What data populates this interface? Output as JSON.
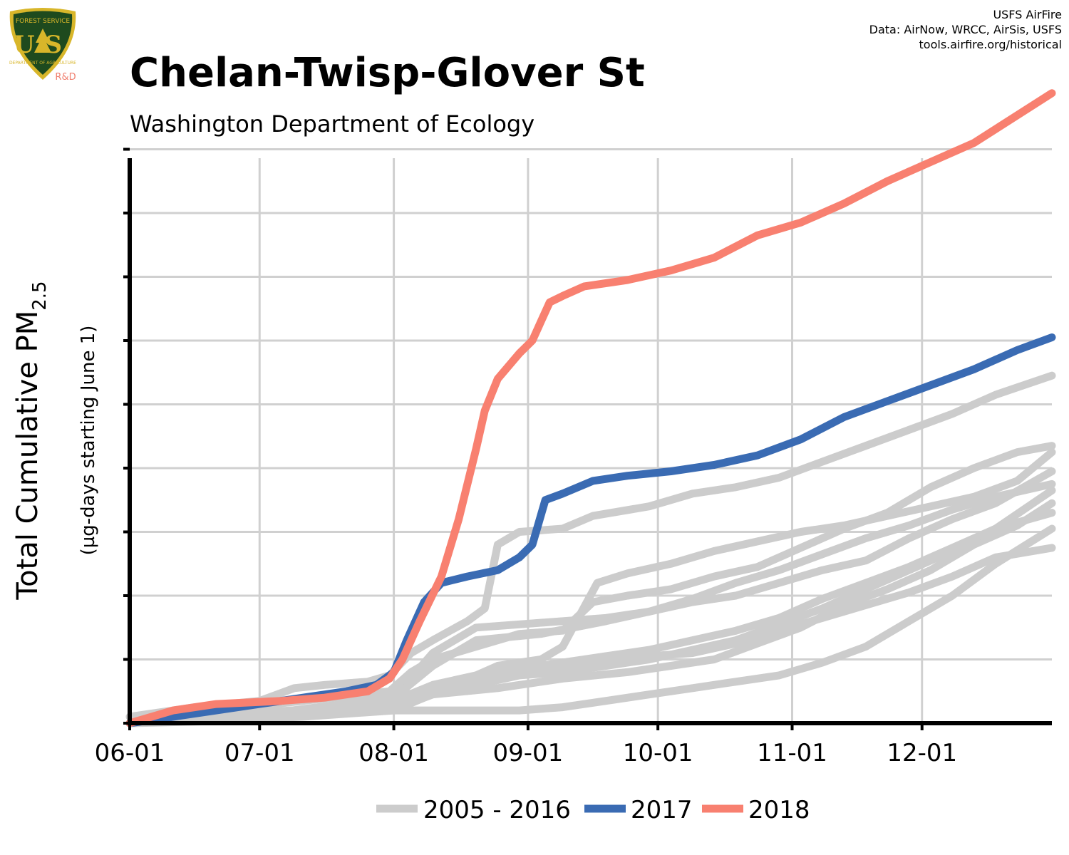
{
  "logo": {
    "top_text": "FOREST SERVICE",
    "initials": "US",
    "bottom_text": "DEPARTMENT OF AGRICULTURE",
    "rd_text": "R&D",
    "colors": {
      "shield": "#1e4a1e",
      "trim": "#d8b62a",
      "rd": "#f08070"
    }
  },
  "credit": {
    "line1": "USFS AirFire",
    "line2": "Data: AirNow, WRCC, AirSis, USFS",
    "line3": "tools.airfire.org/historical"
  },
  "chart_data": {
    "type": "line",
    "title": "Chelan-Twisp-Glover St",
    "subtitle": "Washington Department of Ecology",
    "ylabel_main": "Total Cumulative PM",
    "ylabel_sub_script": "2.5",
    "ylabel_units": "(µg-days starting June 1)",
    "xlabel": "",
    "x_ticks": [
      "06-01",
      "07-01",
      "08-01",
      "09-01",
      "10-01",
      "11-01",
      "12-01"
    ],
    "x_tick_days": [
      0,
      30,
      61,
      92,
      122,
      153,
      183
    ],
    "xlim_days": [
      0,
      213
    ],
    "y_gridlines": 9,
    "grid": true,
    "legend": {
      "placement": "bottom",
      "entries": [
        {
          "label": "2005 - 2016",
          "color": "#cccccc"
        },
        {
          "label": "2017",
          "color": "#3a6bb3"
        },
        {
          "label": "2018",
          "color": "#f88070"
        }
      ]
    },
    "y_scale_note": "y values in units of one gridline spacing",
    "series": [
      {
        "name": "2018",
        "color": "#f88070",
        "points": [
          [
            0,
            0
          ],
          [
            10,
            0.2
          ],
          [
            20,
            0.3
          ],
          [
            35,
            0.35
          ],
          [
            45,
            0.4
          ],
          [
            55,
            0.5
          ],
          [
            60,
            0.7
          ],
          [
            63,
            1.0
          ],
          [
            67,
            1.6
          ],
          [
            72,
            2.3
          ],
          [
            76,
            3.2
          ],
          [
            80,
            4.3
          ],
          [
            82,
            4.9
          ],
          [
            85,
            5.4
          ],
          [
            90,
            5.8
          ],
          [
            93,
            6.0
          ],
          [
            95,
            6.3
          ],
          [
            97,
            6.6
          ],
          [
            100,
            6.7
          ],
          [
            105,
            6.85
          ],
          [
            115,
            6.95
          ],
          [
            125,
            7.1
          ],
          [
            135,
            7.3
          ],
          [
            145,
            7.65
          ],
          [
            155,
            7.85
          ],
          [
            165,
            8.15
          ],
          [
            175,
            8.5
          ],
          [
            185,
            8.8
          ],
          [
            195,
            9.1
          ],
          [
            213,
            9.88
          ]
        ]
      },
      {
        "name": "2017",
        "color": "#3a6bb3",
        "points": [
          [
            0,
            0
          ],
          [
            10,
            0.1
          ],
          [
            20,
            0.2
          ],
          [
            30,
            0.3
          ],
          [
            40,
            0.4
          ],
          [
            50,
            0.5
          ],
          [
            57,
            0.6
          ],
          [
            61,
            0.8
          ],
          [
            64,
            1.3
          ],
          [
            68,
            1.9
          ],
          [
            72,
            2.2
          ],
          [
            78,
            2.3
          ],
          [
            85,
            2.4
          ],
          [
            90,
            2.6
          ],
          [
            93,
            2.8
          ],
          [
            96,
            3.5
          ],
          [
            100,
            3.6
          ],
          [
            107,
            3.8
          ],
          [
            115,
            3.88
          ],
          [
            125,
            3.95
          ],
          [
            135,
            4.05
          ],
          [
            145,
            4.2
          ],
          [
            155,
            4.45
          ],
          [
            165,
            4.8
          ],
          [
            175,
            5.05
          ],
          [
            185,
            5.3
          ],
          [
            195,
            5.55
          ],
          [
            205,
            5.85
          ],
          [
            213,
            6.05
          ]
        ]
      },
      {
        "name": "",
        "color": "#cccccc",
        "points": [
          [
            0,
            0.1
          ],
          [
            15,
            0.25
          ],
          [
            30,
            0.35
          ],
          [
            38,
            0.55
          ],
          [
            45,
            0.6
          ],
          [
            55,
            0.65
          ],
          [
            60,
            0.75
          ],
          [
            65,
            1.1
          ],
          [
            70,
            1.3
          ],
          [
            78,
            1.6
          ],
          [
            82,
            1.8
          ],
          [
            85,
            2.8
          ],
          [
            90,
            3.0
          ],
          [
            100,
            3.05
          ],
          [
            107,
            3.25
          ],
          [
            120,
            3.4
          ],
          [
            130,
            3.6
          ],
          [
            140,
            3.7
          ],
          [
            150,
            3.85
          ],
          [
            160,
            4.1
          ],
          [
            170,
            4.35
          ],
          [
            180,
            4.6
          ],
          [
            190,
            4.85
          ],
          [
            200,
            5.15
          ],
          [
            213,
            5.45
          ]
        ]
      },
      {
        "name": "",
        "color": "#cccccc",
        "points": [
          [
            0,
            0
          ],
          [
            20,
            0.2
          ],
          [
            40,
            0.35
          ],
          [
            60,
            0.5
          ],
          [
            65,
            0.8
          ],
          [
            70,
            1.0
          ],
          [
            80,
            1.2
          ],
          [
            90,
            1.4
          ],
          [
            100,
            1.45
          ],
          [
            107,
            1.9
          ],
          [
            115,
            2.0
          ],
          [
            125,
            2.1
          ],
          [
            135,
            2.3
          ],
          [
            145,
            2.45
          ],
          [
            155,
            2.75
          ],
          [
            165,
            3.05
          ],
          [
            175,
            3.3
          ],
          [
            185,
            3.7
          ],
          [
            195,
            4.0
          ],
          [
            205,
            4.25
          ],
          [
            213,
            4.35
          ]
        ]
      },
      {
        "name": "",
        "color": "#cccccc",
        "points": [
          [
            0,
            0
          ],
          [
            25,
            0.15
          ],
          [
            50,
            0.25
          ],
          [
            61,
            0.4
          ],
          [
            70,
            0.9
          ],
          [
            80,
            1.3
          ],
          [
            95,
            1.4
          ],
          [
            110,
            1.6
          ],
          [
            120,
            1.75
          ],
          [
            130,
            1.9
          ],
          [
            140,
            2.0
          ],
          [
            150,
            2.2
          ],
          [
            160,
            2.4
          ],
          [
            170,
            2.55
          ],
          [
            180,
            2.9
          ],
          [
            190,
            3.2
          ],
          [
            200,
            3.45
          ],
          [
            213,
            3.95
          ]
        ]
      },
      {
        "name": "",
        "color": "#cccccc",
        "points": [
          [
            0,
            0
          ],
          [
            30,
            0.15
          ],
          [
            55,
            0.25
          ],
          [
            61,
            0.35
          ],
          [
            70,
            0.6
          ],
          [
            80,
            0.75
          ],
          [
            90,
            0.85
          ],
          [
            100,
            0.95
          ],
          [
            110,
            1.05
          ],
          [
            120,
            1.15
          ],
          [
            130,
            1.3
          ],
          [
            140,
            1.45
          ],
          [
            150,
            1.65
          ],
          [
            160,
            1.95
          ],
          [
            170,
            2.2
          ],
          [
            180,
            2.45
          ],
          [
            190,
            2.75
          ],
          [
            200,
            3.05
          ],
          [
            213,
            3.65
          ]
        ]
      },
      {
        "name": "",
        "color": "#cccccc",
        "points": [
          [
            0,
            0
          ],
          [
            30,
            0.1
          ],
          [
            60,
            0.2
          ],
          [
            70,
            0.45
          ],
          [
            85,
            0.55
          ],
          [
            100,
            0.7
          ],
          [
            115,
            0.8
          ],
          [
            125,
            0.9
          ],
          [
            135,
            1.0
          ],
          [
            145,
            1.25
          ],
          [
            155,
            1.5
          ],
          [
            165,
            1.85
          ],
          [
            175,
            2.1
          ],
          [
            185,
            2.4
          ],
          [
            195,
            2.8
          ],
          [
            205,
            3.1
          ],
          [
            213,
            3.45
          ]
        ]
      },
      {
        "name": "",
        "color": "#cccccc",
        "points": [
          [
            0,
            0
          ],
          [
            30,
            0.1
          ],
          [
            60,
            0.25
          ],
          [
            70,
            0.5
          ],
          [
            80,
            0.6
          ],
          [
            90,
            0.75
          ],
          [
            100,
            0.8
          ],
          [
            110,
            0.9
          ],
          [
            120,
            1.0
          ],
          [
            130,
            1.15
          ],
          [
            140,
            1.3
          ],
          [
            150,
            1.55
          ],
          [
            160,
            1.8
          ],
          [
            170,
            2.1
          ],
          [
            180,
            2.4
          ],
          [
            190,
            2.7
          ],
          [
            200,
            3.05
          ],
          [
            213,
            3.3
          ]
        ]
      },
      {
        "name": "",
        "color": "#cccccc",
        "points": [
          [
            0,
            0
          ],
          [
            40,
            0.1
          ],
          [
            61,
            0.2
          ],
          [
            75,
            0.6
          ],
          [
            85,
            0.9
          ],
          [
            95,
            1.0
          ],
          [
            100,
            1.2
          ],
          [
            108,
            2.2
          ],
          [
            115,
            2.35
          ],
          [
            125,
            2.5
          ],
          [
            135,
            2.7
          ],
          [
            145,
            2.85
          ],
          [
            155,
            3.0
          ],
          [
            165,
            3.1
          ],
          [
            175,
            3.25
          ],
          [
            185,
            3.4
          ],
          [
            195,
            3.55
          ],
          [
            205,
            3.8
          ],
          [
            213,
            4.25
          ]
        ]
      },
      {
        "name": "",
        "color": "#cccccc",
        "points": [
          [
            0,
            0
          ],
          [
            30,
            0.05
          ],
          [
            40,
            0.15
          ],
          [
            60,
            0.2
          ],
          [
            90,
            0.2
          ],
          [
            100,
            0.25
          ],
          [
            110,
            0.35
          ],
          [
            120,
            0.45
          ],
          [
            130,
            0.55
          ],
          [
            140,
            0.65
          ],
          [
            150,
            0.75
          ],
          [
            160,
            0.95
          ],
          [
            170,
            1.2
          ],
          [
            180,
            1.6
          ],
          [
            190,
            2.0
          ],
          [
            200,
            2.5
          ],
          [
            213,
            3.05
          ]
        ]
      },
      {
        "name": "",
        "color": "#cccccc",
        "points": [
          [
            0,
            0
          ],
          [
            30,
            0.1
          ],
          [
            61,
            0.4
          ],
          [
            70,
            1.1
          ],
          [
            80,
            1.5
          ],
          [
            90,
            1.55
          ],
          [
            100,
            1.6
          ],
          [
            110,
            1.65
          ],
          [
            120,
            1.75
          ],
          [
            130,
            1.95
          ],
          [
            140,
            2.2
          ],
          [
            150,
            2.4
          ],
          [
            160,
            2.65
          ],
          [
            170,
            2.9
          ],
          [
            180,
            3.1
          ],
          [
            190,
            3.35
          ],
          [
            200,
            3.55
          ],
          [
            213,
            3.75
          ]
        ]
      },
      {
        "name": "",
        "color": "#cccccc",
        "points": [
          [
            0,
            0
          ],
          [
            20,
            0.05
          ],
          [
            61,
            0.4
          ],
          [
            80,
            0.7
          ],
          [
            90,
            0.8
          ],
          [
            100,
            0.85
          ],
          [
            110,
            0.95
          ],
          [
            120,
            1.05
          ],
          [
            130,
            1.1
          ],
          [
            140,
            1.25
          ],
          [
            150,
            1.45
          ],
          [
            160,
            1.65
          ],
          [
            170,
            1.85
          ],
          [
            180,
            2.05
          ],
          [
            190,
            2.3
          ],
          [
            200,
            2.6
          ],
          [
            213,
            2.75
          ]
        ]
      }
    ]
  }
}
